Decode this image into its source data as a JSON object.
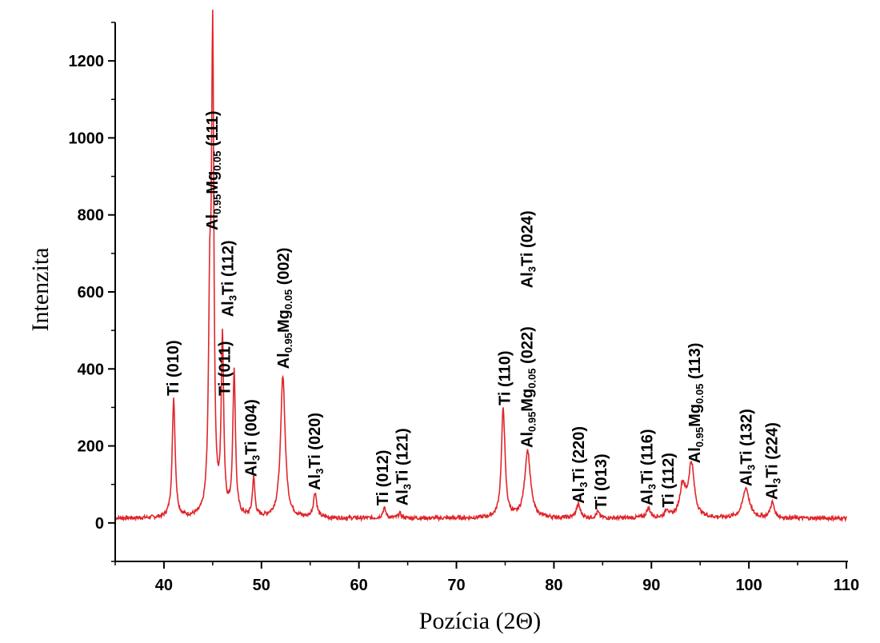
{
  "chart_data": {
    "type": "line",
    "title": "",
    "xlabel": "Pozícia (2Θ)",
    "ylabel": "Intenzita",
    "xlim": [
      35,
      110
    ],
    "ylim": [
      -100,
      1300
    ],
    "grid": false,
    "line_color": "#e0262b",
    "xticks": [
      40,
      50,
      60,
      70,
      80,
      90,
      100,
      110
    ],
    "yticks": [
      0,
      200,
      400,
      600,
      800,
      1000,
      1200
    ],
    "baseline": 12,
    "peaks": [
      {
        "x": 41.0,
        "y": 310,
        "w": 0.18
      },
      {
        "x": 44.7,
        "y": 500,
        "w": 0.16
      },
      {
        "x": 45.0,
        "y": 1200,
        "w": 0.14
      },
      {
        "x": 46.0,
        "y": 450,
        "w": 0.15
      },
      {
        "x": 47.2,
        "y": 375,
        "w": 0.16
      },
      {
        "x": 49.2,
        "y": 100,
        "w": 0.15
      },
      {
        "x": 52.2,
        "y": 370,
        "w": 0.28
      },
      {
        "x": 55.5,
        "y": 65,
        "w": 0.2
      },
      {
        "x": 62.6,
        "y": 25,
        "w": 0.2
      },
      {
        "x": 64.2,
        "y": 12,
        "w": 0.2
      },
      {
        "x": 74.8,
        "y": 285,
        "w": 0.22
      },
      {
        "x": 77.3,
        "y": 175,
        "w": 0.35
      },
      {
        "x": 82.5,
        "y": 35,
        "w": 0.25
      },
      {
        "x": 84.5,
        "y": 15,
        "w": 0.2
      },
      {
        "x": 89.7,
        "y": 25,
        "w": 0.25
      },
      {
        "x": 91.6,
        "y": 20,
        "w": 0.2
      },
      {
        "x": 93.2,
        "y": 80,
        "w": 0.35
      },
      {
        "x": 94.1,
        "y": 138,
        "w": 0.35
      },
      {
        "x": 99.7,
        "y": 78,
        "w": 0.4
      },
      {
        "x": 102.4,
        "y": 40,
        "w": 0.25
      }
    ],
    "annotations": [
      {
        "x": 41.0,
        "y": 330,
        "parts": [
          [
            "Ti (010)",
            0
          ]
        ]
      },
      {
        "x": 45.0,
        "y": 760,
        "parts": [
          [
            "Al",
            0
          ],
          [
            "0.95",
            1
          ],
          [
            "Mg",
            0
          ],
          [
            "0.05",
            1
          ],
          [
            " (111)",
            0
          ]
        ]
      },
      {
        "x": 46.6,
        "y": 535,
        "parts": [
          [
            "Al",
            0
          ],
          [
            "3",
            1
          ],
          [
            "Ti (112)",
            0
          ]
        ]
      },
      {
        "x": 46.3,
        "y": 330,
        "parts": [
          [
            "Ti (011)",
            0
          ]
        ]
      },
      {
        "x": 49.0,
        "y": 120,
        "parts": [
          [
            "Al",
            0
          ],
          [
            "3",
            1
          ],
          [
            "Ti (004)",
            0
          ]
        ]
      },
      {
        "x": 52.3,
        "y": 400,
        "parts": [
          [
            "Al",
            0
          ],
          [
            "0.95",
            1
          ],
          [
            "Mg",
            0
          ],
          [
            "0.05",
            1
          ],
          [
            " (002)",
            0
          ]
        ]
      },
      {
        "x": 55.5,
        "y": 85,
        "parts": [
          [
            "Al",
            0
          ],
          [
            "3",
            1
          ],
          [
            "Ti (020)",
            0
          ]
        ]
      },
      {
        "x": 62.5,
        "y": 45,
        "parts": [
          [
            "Ti (012)",
            0
          ]
        ]
      },
      {
        "x": 64.5,
        "y": 45,
        "parts": [
          [
            "Al",
            0
          ],
          [
            "3",
            1
          ],
          [
            "Ti (121)",
            0
          ]
        ]
      },
      {
        "x": 75.0,
        "y": 305,
        "parts": [
          [
            "Ti (110)",
            0
          ]
        ]
      },
      {
        "x": 77.3,
        "y": 195,
        "parts": [
          [
            "Al",
            0
          ],
          [
            "0.95",
            1
          ],
          [
            "Mg",
            0
          ],
          [
            "0.05",
            1
          ],
          [
            " (022)",
            0
          ]
        ]
      },
      {
        "x": 77.3,
        "y": 610,
        "parts": [
          [
            "Al",
            0
          ],
          [
            "3",
            1
          ],
          [
            "Ti (024)",
            0
          ]
        ]
      },
      {
        "x": 82.6,
        "y": 50,
        "parts": [
          [
            "Al",
            0
          ],
          [
            "3",
            1
          ],
          [
            "Ti (220)",
            0
          ]
        ]
      },
      {
        "x": 84.9,
        "y": 35,
        "parts": [
          [
            "Ti (013)",
            0
          ]
        ]
      },
      {
        "x": 89.6,
        "y": 45,
        "parts": [
          [
            "Al",
            0
          ],
          [
            "3",
            1
          ],
          [
            "Ti (116)",
            0
          ]
        ]
      },
      {
        "x": 91.8,
        "y": 40,
        "parts": [
          [
            "Ti (112)",
            0
          ]
        ]
      },
      {
        "x": 94.5,
        "y": 155,
        "parts": [
          [
            "Al",
            0
          ],
          [
            "0.95",
            1
          ],
          [
            "Mg",
            0
          ],
          [
            "0.05",
            1
          ],
          [
            " (113)",
            0
          ]
        ]
      },
      {
        "x": 99.8,
        "y": 95,
        "parts": [
          [
            "Al",
            0
          ],
          [
            "3",
            1
          ],
          [
            "Ti (132)",
            0
          ]
        ]
      },
      {
        "x": 102.4,
        "y": 60,
        "parts": [
          [
            "Al",
            0
          ],
          [
            "3",
            1
          ],
          [
            "Ti (224)",
            0
          ]
        ]
      }
    ]
  }
}
